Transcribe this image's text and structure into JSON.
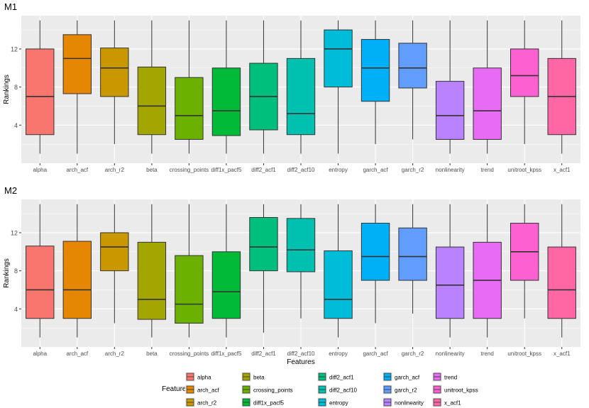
{
  "chart_data": [
    {
      "type": "box",
      "title": "M1",
      "xlabel": "",
      "ylabel": "Rankings",
      "ylim": [
        0,
        15.5
      ],
      "yticks": [
        4,
        8,
        12
      ],
      "grid": true,
      "categories": [
        "alpha",
        "arch_acf",
        "arch_r2",
        "beta",
        "crossing_points",
        "diff1x_pacf5",
        "diff2_acf1",
        "diff2_acf10",
        "entropy",
        "garch_acf",
        "garch_r2",
        "nonlinearity",
        "trend",
        "unitroot_kpss",
        "x_acf1"
      ],
      "boxes": [
        {
          "min": 1,
          "q1": 3,
          "median": 7,
          "q3": 12,
          "max": 15
        },
        {
          "min": 1,
          "q1": 7.3,
          "median": 11,
          "q3": 13.5,
          "max": 15
        },
        {
          "min": 2,
          "q1": 7,
          "median": 10,
          "q3": 12.1,
          "max": 15
        },
        {
          "min": 1,
          "q1": 3,
          "median": 6,
          "q3": 10.1,
          "max": 15
        },
        {
          "min": 1,
          "q1": 2.5,
          "median": 5,
          "q3": 9,
          "max": 15
        },
        {
          "min": 1,
          "q1": 2.9,
          "median": 5.5,
          "q3": 10,
          "max": 15
        },
        {
          "min": 1,
          "q1": 3.5,
          "median": 7,
          "q3": 10.5,
          "max": 15
        },
        {
          "min": 1,
          "q1": 3,
          "median": 5.2,
          "q3": 11,
          "max": 15
        },
        {
          "min": 1,
          "q1": 8,
          "median": 12,
          "q3": 14,
          "max": 15
        },
        {
          "min": 2,
          "q1": 6.5,
          "median": 10,
          "q3": 13,
          "max": 15
        },
        {
          "min": 2.5,
          "q1": 7.9,
          "median": 10,
          "q3": 12.6,
          "max": 15
        },
        {
          "min": 1,
          "q1": 2.5,
          "median": 5,
          "q3": 8.6,
          "max": 15
        },
        {
          "min": 1,
          "q1": 2.5,
          "median": 5.5,
          "q3": 10,
          "max": 15
        },
        {
          "min": 2,
          "q1": 7,
          "median": 9.2,
          "q3": 12,
          "max": 15
        },
        {
          "min": 1,
          "q1": 3,
          "median": 7,
          "q3": 11,
          "max": 15
        }
      ]
    },
    {
      "type": "box",
      "title": "M2",
      "xlabel": "Features",
      "ylabel": "Rankings",
      "ylim": [
        0,
        15.5
      ],
      "yticks": [
        4,
        8,
        12
      ],
      "grid": true,
      "categories": [
        "alpha",
        "arch_acf",
        "arch_r2",
        "beta",
        "crossing_points",
        "diff1x_pacf5",
        "diff2_acf1",
        "diff2_acf10",
        "entropy",
        "garch_acf",
        "garch_r2",
        "nonlinearity",
        "trend",
        "unitroot_kpss",
        "x_acf1"
      ],
      "boxes": [
        {
          "min": 1,
          "q1": 3,
          "median": 6,
          "q3": 10.6,
          "max": 15
        },
        {
          "min": 1,
          "q1": 3,
          "median": 6,
          "q3": 11.1,
          "max": 15
        },
        {
          "min": 2.5,
          "q1": 8,
          "median": 10.5,
          "q3": 12,
          "max": 15
        },
        {
          "min": 1,
          "q1": 2.9,
          "median": 5,
          "q3": 11,
          "max": 15
        },
        {
          "min": 1,
          "q1": 2.5,
          "median": 4.5,
          "q3": 9.6,
          "max": 15
        },
        {
          "min": 1,
          "q1": 3,
          "median": 5.8,
          "q3": 10,
          "max": 15
        },
        {
          "min": 1.5,
          "q1": 8,
          "median": 10.5,
          "q3": 13.6,
          "max": 15
        },
        {
          "min": 3,
          "q1": 7.9,
          "median": 10.2,
          "q3": 13.5,
          "max": 15
        },
        {
          "min": 1,
          "q1": 3,
          "median": 5,
          "q3": 10.1,
          "max": 15
        },
        {
          "min": 2.5,
          "q1": 7,
          "median": 9.5,
          "q3": 13,
          "max": 15
        },
        {
          "min": 3.5,
          "q1": 7,
          "median": 9.5,
          "q3": 12.5,
          "max": 15
        },
        {
          "min": 1,
          "q1": 3,
          "median": 6.5,
          "q3": 10.5,
          "max": 15
        },
        {
          "min": 1,
          "q1": 3,
          "median": 7,
          "q3": 11,
          "max": 15
        },
        {
          "min": 3,
          "q1": 7,
          "median": 10,
          "q3": 13,
          "max": 15
        },
        {
          "min": 1,
          "q1": 3,
          "median": 6,
          "q3": 10.5,
          "max": 15
        }
      ]
    }
  ],
  "legend": {
    "title": "Features",
    "placement": "bottom",
    "items": [
      {
        "label": "alpha",
        "color": "#F8766D"
      },
      {
        "label": "arch_acf",
        "color": "#E58700"
      },
      {
        "label": "arch_r2",
        "color": "#C99800"
      },
      {
        "label": "beta",
        "color": "#A3A500"
      },
      {
        "label": "crossing_points",
        "color": "#6BB100"
      },
      {
        "label": "diff1x_pacf5",
        "color": "#00BA38"
      },
      {
        "label": "diff2_acf1",
        "color": "#00BF7D"
      },
      {
        "label": "diff2_acf10",
        "color": "#00C0AF"
      },
      {
        "label": "entropy",
        "color": "#00BCD8"
      },
      {
        "label": "garch_acf",
        "color": "#00B0F6"
      },
      {
        "label": "garch_r2",
        "color": "#619CFF"
      },
      {
        "label": "nonlinearity",
        "color": "#B983FF"
      },
      {
        "label": "trend",
        "color": "#E76BF3"
      },
      {
        "label": "unitroot_kpss",
        "color": "#FD61D1"
      },
      {
        "label": "x_acf1",
        "color": "#FF67A4"
      }
    ]
  },
  "colors": {
    "panel_background": "#EBEBEB",
    "grid_major": "#FFFFFF",
    "axis_text": "#4D4D4D",
    "line": "#333333"
  }
}
